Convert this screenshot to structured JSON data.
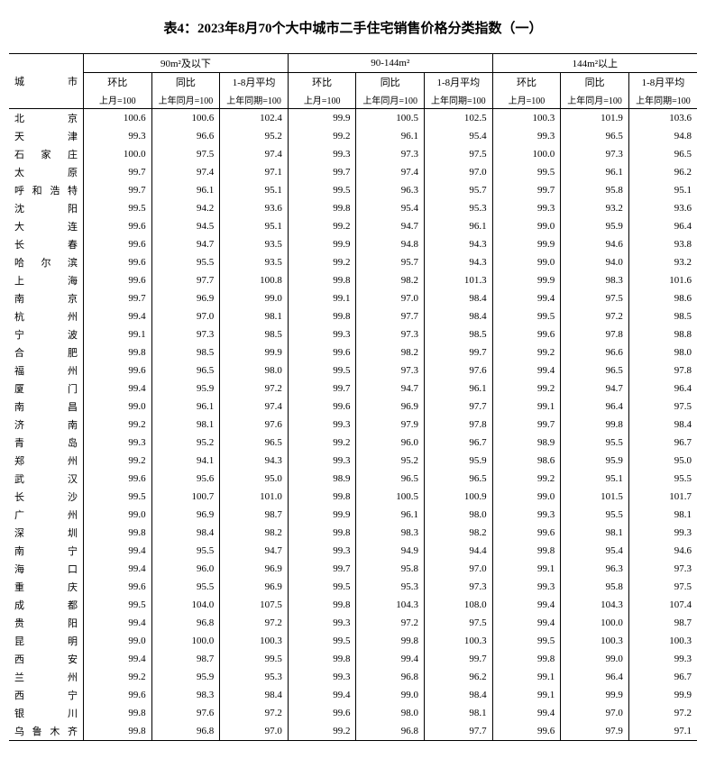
{
  "title": "表4：2023年8月70个大中城市二手住宅销售价格分类指数（一）",
  "header": {
    "city": "城市",
    "groups": [
      "90m²及以下",
      "90-144m²",
      "144m²以上"
    ],
    "sub1": [
      "环比",
      "同比",
      "1-8月平均"
    ],
    "sub2": [
      "上月=100",
      "上年同月=100",
      "上年同期=100"
    ]
  },
  "rows": [
    {
      "city": "北　　京",
      "v": [
        "100.6",
        "100.6",
        "102.4",
        "99.9",
        "100.5",
        "102.5",
        "100.3",
        "101.9",
        "103.6"
      ]
    },
    {
      "city": "天　　津",
      "v": [
        "99.3",
        "96.6",
        "95.2",
        "99.2",
        "96.1",
        "95.4",
        "99.3",
        "96.5",
        "94.8"
      ]
    },
    {
      "city": "石 家 庄",
      "v": [
        "100.0",
        "97.5",
        "97.4",
        "99.3",
        "97.3",
        "97.5",
        "100.0",
        "97.3",
        "96.5"
      ]
    },
    {
      "city": "太　　原",
      "v": [
        "99.7",
        "97.4",
        "97.1",
        "99.7",
        "97.4",
        "97.0",
        "99.5",
        "96.1",
        "96.2"
      ]
    },
    {
      "city": "呼和浩特",
      "v": [
        "99.7",
        "96.1",
        "95.1",
        "99.5",
        "96.3",
        "95.7",
        "99.7",
        "95.8",
        "95.1"
      ]
    },
    {
      "city": "沈　　阳",
      "v": [
        "99.5",
        "94.2",
        "93.6",
        "99.8",
        "95.4",
        "95.3",
        "99.3",
        "93.2",
        "93.6"
      ]
    },
    {
      "city": "大　　连",
      "v": [
        "99.6",
        "94.5",
        "95.1",
        "99.2",
        "94.7",
        "96.1",
        "99.0",
        "95.9",
        "96.4"
      ]
    },
    {
      "city": "长　　春",
      "v": [
        "99.6",
        "94.7",
        "93.5",
        "99.9",
        "94.8",
        "94.3",
        "99.9",
        "94.6",
        "93.8"
      ]
    },
    {
      "city": "哈 尔 滨",
      "v": [
        "99.6",
        "95.5",
        "93.5",
        "99.2",
        "95.7",
        "94.3",
        "99.0",
        "94.0",
        "93.2"
      ]
    },
    {
      "city": "上　　海",
      "v": [
        "99.6",
        "97.7",
        "100.8",
        "99.8",
        "98.2",
        "101.3",
        "99.9",
        "98.3",
        "101.6"
      ]
    },
    {
      "city": "南　　京",
      "v": [
        "99.7",
        "96.9",
        "99.0",
        "99.1",
        "97.0",
        "98.4",
        "99.4",
        "97.5",
        "98.6"
      ]
    },
    {
      "city": "杭　　州",
      "v": [
        "99.4",
        "97.0",
        "98.1",
        "99.8",
        "97.7",
        "98.4",
        "99.5",
        "97.2",
        "98.5"
      ]
    },
    {
      "city": "宁　　波",
      "v": [
        "99.1",
        "97.3",
        "98.5",
        "99.3",
        "97.3",
        "98.5",
        "99.6",
        "97.8",
        "98.8"
      ]
    },
    {
      "city": "合　　肥",
      "v": [
        "99.8",
        "98.5",
        "99.9",
        "99.6",
        "98.2",
        "99.7",
        "99.2",
        "96.6",
        "98.0"
      ]
    },
    {
      "city": "福　　州",
      "v": [
        "99.6",
        "96.5",
        "98.0",
        "99.5",
        "97.3",
        "97.6",
        "99.4",
        "96.5",
        "97.8"
      ]
    },
    {
      "city": "厦　　门",
      "v": [
        "99.4",
        "95.9",
        "97.2",
        "99.7",
        "94.7",
        "96.1",
        "99.2",
        "94.7",
        "96.4"
      ]
    },
    {
      "city": "南　　昌",
      "v": [
        "99.0",
        "96.1",
        "97.4",
        "99.6",
        "96.9",
        "97.7",
        "99.1",
        "96.4",
        "97.5"
      ]
    },
    {
      "city": "济　　南",
      "v": [
        "99.2",
        "98.1",
        "97.6",
        "99.3",
        "97.9",
        "97.8",
        "99.7",
        "99.8",
        "98.4"
      ]
    },
    {
      "city": "青　　岛",
      "v": [
        "99.3",
        "95.2",
        "96.5",
        "99.2",
        "96.0",
        "96.7",
        "98.9",
        "95.5",
        "96.7"
      ]
    },
    {
      "city": "郑　　州",
      "v": [
        "99.2",
        "94.1",
        "94.3",
        "99.3",
        "95.2",
        "95.9",
        "98.6",
        "95.9",
        "95.0"
      ]
    },
    {
      "city": "武　　汉",
      "v": [
        "99.6",
        "95.6",
        "95.0",
        "98.9",
        "96.5",
        "96.5",
        "99.2",
        "95.1",
        "95.5"
      ]
    },
    {
      "city": "长　　沙",
      "v": [
        "99.5",
        "100.7",
        "101.0",
        "99.8",
        "100.5",
        "100.9",
        "99.0",
        "101.5",
        "101.7"
      ]
    },
    {
      "city": "广　　州",
      "v": [
        "99.0",
        "96.9",
        "98.7",
        "99.9",
        "96.1",
        "98.0",
        "99.3",
        "95.5",
        "98.1"
      ]
    },
    {
      "city": "深　　圳",
      "v": [
        "99.8",
        "98.4",
        "98.2",
        "99.8",
        "98.3",
        "98.2",
        "99.6",
        "98.1",
        "99.3"
      ]
    },
    {
      "city": "南　　宁",
      "v": [
        "99.4",
        "95.5",
        "94.7",
        "99.3",
        "94.9",
        "94.4",
        "99.8",
        "95.4",
        "94.6"
      ]
    },
    {
      "city": "海　　口",
      "v": [
        "99.4",
        "96.0",
        "96.9",
        "99.7",
        "95.8",
        "97.0",
        "99.1",
        "96.3",
        "97.3"
      ]
    },
    {
      "city": "重　　庆",
      "v": [
        "99.6",
        "95.5",
        "96.9",
        "99.5",
        "95.3",
        "97.3",
        "99.3",
        "95.8",
        "97.5"
      ]
    },
    {
      "city": "成　　都",
      "v": [
        "99.5",
        "104.0",
        "107.5",
        "99.8",
        "104.3",
        "108.0",
        "99.4",
        "104.3",
        "107.4"
      ]
    },
    {
      "city": "贵　　阳",
      "v": [
        "99.4",
        "96.8",
        "97.2",
        "99.3",
        "97.2",
        "97.5",
        "99.4",
        "100.0",
        "98.7"
      ]
    },
    {
      "city": "昆　　明",
      "v": [
        "99.0",
        "100.0",
        "100.3",
        "99.5",
        "99.8",
        "100.3",
        "99.5",
        "100.3",
        "100.3"
      ]
    },
    {
      "city": "西　　安",
      "v": [
        "99.4",
        "98.7",
        "99.5",
        "99.8",
        "99.4",
        "99.7",
        "99.8",
        "99.0",
        "99.3"
      ]
    },
    {
      "city": "兰　　州",
      "v": [
        "99.2",
        "95.9",
        "95.3",
        "99.3",
        "96.8",
        "96.2",
        "99.1",
        "96.4",
        "96.7"
      ]
    },
    {
      "city": "西　　宁",
      "v": [
        "99.6",
        "98.3",
        "98.4",
        "99.4",
        "99.0",
        "98.4",
        "99.1",
        "99.9",
        "99.9"
      ]
    },
    {
      "city": "银　　川",
      "v": [
        "99.8",
        "97.6",
        "97.2",
        "99.6",
        "98.0",
        "98.1",
        "99.4",
        "97.0",
        "97.2"
      ]
    },
    {
      "city": "乌鲁木齐",
      "v": [
        "99.8",
        "96.8",
        "97.0",
        "99.2",
        "96.8",
        "97.7",
        "99.6",
        "97.9",
        "97.1"
      ]
    }
  ]
}
